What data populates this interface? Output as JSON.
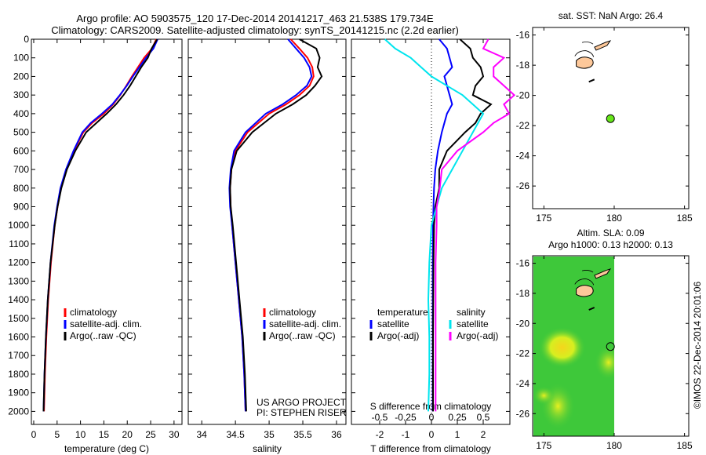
{
  "header": {
    "line1": "Argo profile: AO 5903575_120 17-Dec-2014 20141217_463 21.538S 179.734E",
    "line2": "Climatology: CARS2009. Satellite-adjusted climatology: synTS_20141215.nc (2.2d earlier)"
  },
  "chart_data": [
    {
      "type": "line",
      "id": "temperature",
      "xlabel": "temperature (deg C)",
      "ylabel": "depth",
      "xlim": [
        -0.5,
        31.7
      ],
      "ylim": [
        2070,
        0
      ],
      "xticks": [
        0,
        5,
        10,
        15,
        20,
        25,
        30
      ],
      "yticks": [
        0,
        100,
        200,
        300,
        400,
        500,
        600,
        700,
        800,
        900,
        1000,
        1100,
        1200,
        1300,
        1400,
        1500,
        1600,
        1700,
        1800,
        1900,
        2000
      ],
      "legend": [
        "climatology",
        "satellite-adj. clim.",
        "Argo(..raw -QC)"
      ],
      "depth": [
        0,
        50,
        100,
        150,
        200,
        250,
        300,
        350,
        400,
        450,
        500,
        600,
        700,
        800,
        900,
        1000,
        1200,
        1400,
        1600,
        1800,
        2000
      ],
      "series": [
        {
          "name": "climatology",
          "color": "#ff0000",
          "values": [
            26.2,
            25.3,
            23.6,
            22.3,
            21.0,
            19.8,
            18.5,
            17.0,
            15.0,
            12.5,
            10.6,
            8.6,
            7.0,
            5.8,
            5.1,
            4.5,
            3.7,
            3.1,
            2.7,
            2.4,
            2.2
          ]
        },
        {
          "name": "satellite-adj. clim.",
          "color": "#0000ff",
          "values": [
            26.5,
            25.6,
            24.0,
            22.6,
            21.2,
            19.9,
            18.4,
            16.8,
            14.6,
            12.2,
            10.4,
            8.5,
            6.9,
            5.7,
            5.0,
            4.4,
            3.6,
            3.0,
            2.6,
            2.3,
            2.1
          ]
        },
        {
          "name": "Argo(..raw -QC)",
          "color": "#000000",
          "values": [
            26.4,
            25.2,
            24.4,
            23.0,
            21.8,
            20.6,
            19.2,
            17.6,
            15.6,
            13.4,
            11.2,
            8.9,
            7.1,
            5.9,
            5.1,
            4.5,
            3.6,
            3.0,
            2.6,
            2.3,
            2.1
          ]
        }
      ]
    },
    {
      "type": "line",
      "id": "salinity",
      "xlabel": "salinity",
      "xlim": [
        33.8,
        36.14
      ],
      "ylim": [
        2070,
        0
      ],
      "xticks": [
        34,
        34.5,
        35,
        35.5,
        36
      ],
      "legend": [
        "climatology",
        "satellite-adj. clim.",
        "Argo(..raw -QC)"
      ],
      "annotation": [
        "US ARGO PROJECT",
        "PI: STEPHEN RISER"
      ],
      "depth": [
        0,
        50,
        100,
        150,
        200,
        250,
        300,
        350,
        400,
        500,
        600,
        700,
        800,
        900,
        1000,
        1200,
        1400,
        1600,
        1800,
        2000
      ],
      "series": [
        {
          "name": "climatology",
          "color": "#ff0000",
          "values": [
            35.32,
            35.45,
            35.57,
            35.64,
            35.66,
            35.6,
            35.45,
            35.25,
            35.0,
            34.68,
            34.5,
            34.44,
            34.42,
            34.43,
            34.45,
            34.5,
            34.55,
            34.6,
            34.63,
            34.65
          ]
        },
        {
          "name": "satellite-adj. clim.",
          "color": "#0000ff",
          "values": [
            35.28,
            35.4,
            35.52,
            35.6,
            35.63,
            35.56,
            35.4,
            35.2,
            34.95,
            34.65,
            34.48,
            34.43,
            34.41,
            34.42,
            34.45,
            34.5,
            34.55,
            34.6,
            34.63,
            34.65
          ]
        },
        {
          "name": "Argo(..raw -QC)",
          "color": "#000000",
          "values": [
            35.45,
            35.7,
            35.75,
            35.72,
            35.78,
            35.68,
            35.55,
            35.35,
            35.1,
            34.75,
            34.52,
            34.44,
            34.42,
            34.43,
            34.46,
            34.51,
            34.56,
            34.61,
            34.64,
            34.66
          ]
        }
      ]
    },
    {
      "type": "line",
      "id": "difference",
      "xlabel": "T difference from climatology",
      "x2label": "S difference from climatology",
      "xlim": [
        -3.09,
        3.03
      ],
      "ylim": [
        2070,
        0
      ],
      "xticks": [
        -2,
        -1,
        0,
        1,
        2
      ],
      "x2ticks": [
        "-0.5",
        "-0.25",
        "0",
        "0.25",
        "0.5"
      ],
      "legend_headers": [
        "temperature",
        "salinity"
      ],
      "legend": [
        "satellite",
        "Argo(-adj)",
        "satellite",
        "Argo(-adj)"
      ],
      "depth": [
        0,
        50,
        100,
        150,
        200,
        250,
        300,
        350,
        400,
        450,
        500,
        600,
        700,
        800,
        900,
        1000,
        1200,
        1400,
        1600,
        1800,
        2000
      ],
      "series": [
        {
          "name": "T satellite",
          "color": "#0000ff",
          "values": [
            0.3,
            0.6,
            0.7,
            0.8,
            0.5,
            0.6,
            0.7,
            0.8,
            0.6,
            0.5,
            0.4,
            0.25,
            0.15,
            0.1,
            0.08,
            0.06,
            0.05,
            0.05,
            0.05,
            0.05,
            0.05
          ]
        },
        {
          "name": "T Argo(-adj)",
          "color": "#000000",
          "values": [
            1.1,
            1.5,
            1.6,
            1.9,
            2.0,
            1.7,
            1.6,
            2.3,
            1.9,
            1.7,
            1.3,
            0.6,
            0.3,
            0.3,
            0.15,
            0.1,
            0.08,
            0.07,
            0.06,
            0.06,
            0.06
          ]
        },
        {
          "name": "S satellite",
          "color": "#00e5ee",
          "values": [
            -0.45,
            -0.35,
            -0.2,
            -0.1,
            0.0,
            0.15,
            0.3,
            0.4,
            0.5,
            0.45,
            0.4,
            0.3,
            0.2,
            0.1,
            0.05,
            0.0,
            -0.02,
            -0.03,
            -0.02,
            -0.02,
            -0.03
          ]
        },
        {
          "name": "S Argo(-adj)",
          "color": "#ff00ff",
          "values": [
            0.55,
            0.5,
            0.7,
            0.6,
            0.6,
            0.7,
            0.8,
            0.7,
            0.75,
            0.6,
            0.5,
            0.25,
            0.1,
            0.08,
            0.05,
            0.05,
            0.04,
            0.04,
            0.04,
            0.04,
            0.04
          ]
        }
      ]
    },
    {
      "type": "scatter",
      "id": "sst-map",
      "title": "sat. SST: NaN Argo: 26.4",
      "xlim": [
        174.2,
        185.3
      ],
      "ylim": [
        -27.5,
        -15.5
      ],
      "xticks": [
        175,
        180,
        185
      ],
      "yticks": [
        -16,
        -18,
        -20,
        -22,
        -24,
        -26
      ],
      "points": [
        {
          "lon": 179.734,
          "lat": -21.538,
          "color": "#66e61a"
        }
      ]
    },
    {
      "type": "heatmap",
      "id": "sla-map",
      "title": "Altim. SLA: 0.09",
      "subtitle": "Argo h1000: 0.13 h2000: 0.13",
      "xlim": [
        174.2,
        185.3
      ],
      "ylim": [
        -27.5,
        -15.5
      ],
      "xticks": [
        175,
        180,
        185
      ],
      "yticks": [
        -16,
        -18,
        -20,
        -22,
        -24,
        -26
      ],
      "points": [
        {
          "lon": 179.734,
          "lat": -21.538
        }
      ]
    }
  ],
  "footer": {
    "credit": "©IMOS 22-Dec-2014 20:01:06"
  }
}
